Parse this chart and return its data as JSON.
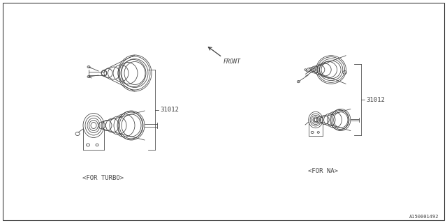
{
  "bg_color": "#ffffff",
  "line_color": "#404040",
  "border_color": "#404040",
  "part_number": "31012",
  "label_turbo": "<FOR TURBO>",
  "label_na": "<FOR NA>",
  "label_front": "FRONT",
  "catalog_number": "A150001492",
  "fig_width": 6.4,
  "fig_height": 3.2,
  "dpi": 100
}
